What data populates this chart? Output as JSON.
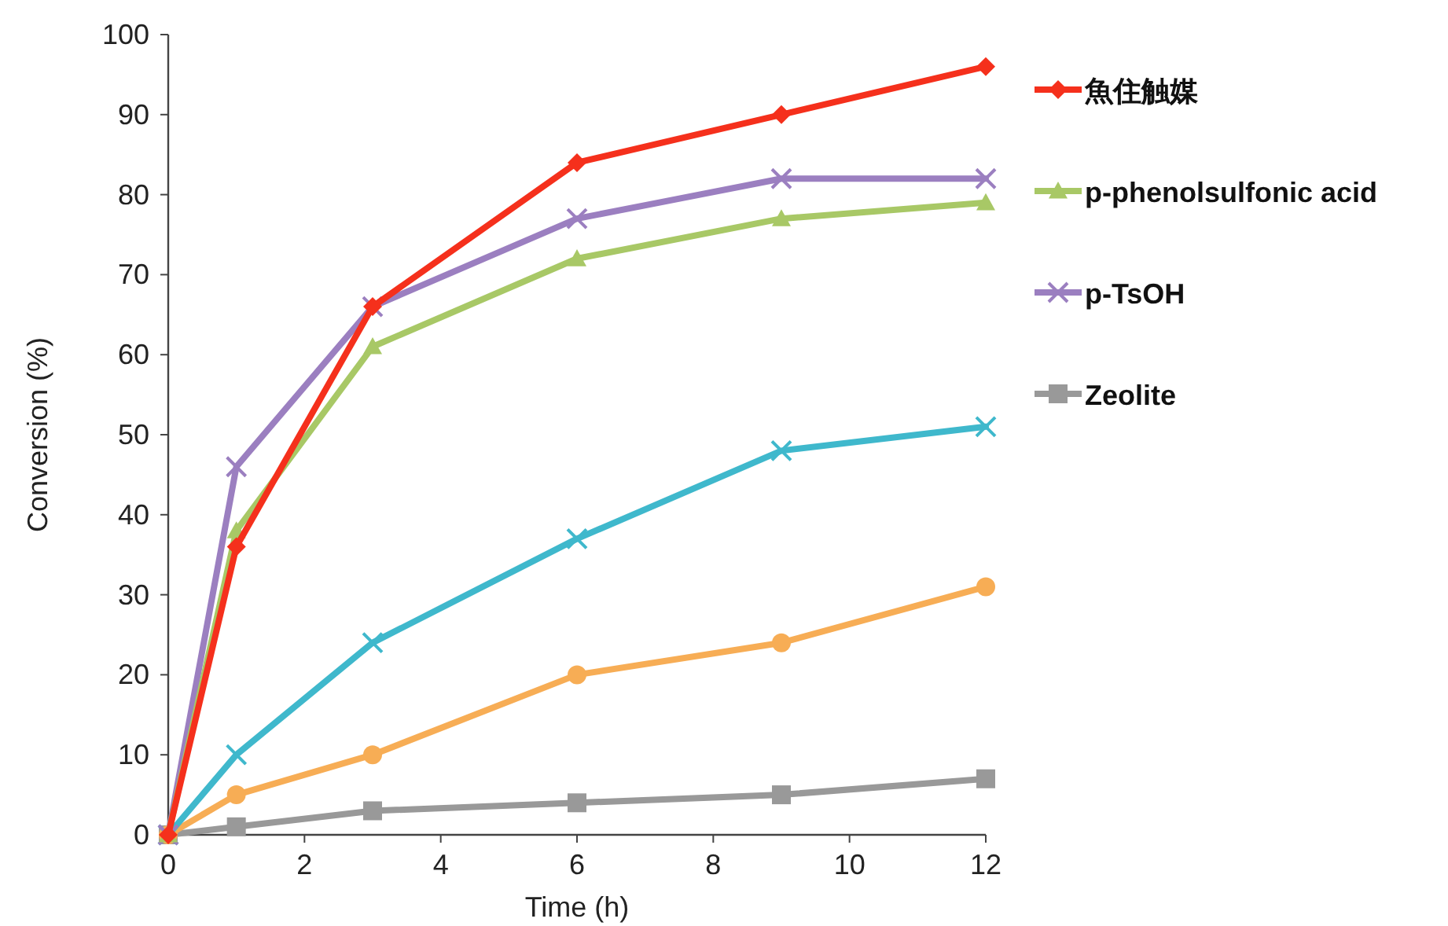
{
  "chart_data": {
    "type": "line",
    "xlabel": "Time (h)",
    "ylabel": "Conversion (%)",
    "x": [
      0,
      1,
      3,
      6,
      9,
      12
    ],
    "xlim": [
      0,
      12
    ],
    "xticks": [
      0,
      2,
      4,
      6,
      8,
      10,
      12
    ],
    "ylim": [
      0,
      100
    ],
    "yticks": [
      0,
      10,
      20,
      30,
      40,
      50,
      60,
      70,
      80,
      90,
      100
    ],
    "legend": "right",
    "grid": false,
    "series": [
      {
        "name": "魚住触媒",
        "color": "#f5301c",
        "marker": "diamond",
        "values": [
          0,
          36,
          66,
          84,
          90,
          96
        ]
      },
      {
        "name": "p-phenolsulfonic acid",
        "color": "#a8c866",
        "marker": "triangle",
        "values": [
          0,
          38,
          61,
          72,
          77,
          79
        ]
      },
      {
        "name": "p-TsOH",
        "color": "#9b7fc0",
        "marker": "cross",
        "values": [
          0,
          46,
          66,
          77,
          82,
          82
        ]
      },
      {
        "color": "#3fb8cc",
        "marker": "cross",
        "values": [
          0,
          10,
          24,
          37,
          48,
          51
        ]
      },
      {
        "color": "#f7ad55",
        "marker": "circle",
        "values": [
          0,
          5,
          10,
          20,
          24,
          31
        ]
      },
      {
        "name": "Zeolite",
        "color": "#999999",
        "marker": "square",
        "values": [
          0,
          1,
          3,
          4,
          5,
          7
        ]
      }
    ]
  }
}
